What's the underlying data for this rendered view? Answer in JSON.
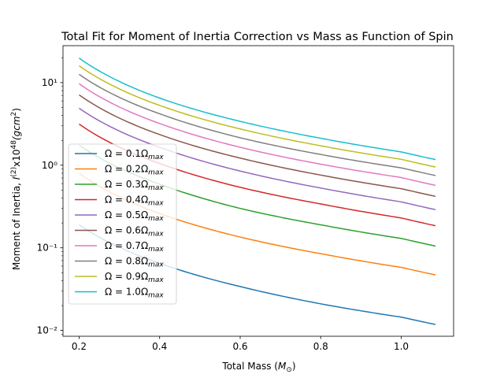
{
  "chart_data": {
    "type": "line",
    "title": "Total Fit for Moment of Inertia Correction vs Mass as Function of Spin",
    "xlabel": "Total Mass (M⊙)",
    "ylabel": "Moment of Inertia, I(2)x10^48(gcm²)",
    "xlim": [
      0.16,
      1.13
    ],
    "ylim": [
      0.0085,
      28
    ],
    "yscale": "log",
    "xticks": [
      0.2,
      0.4,
      0.6,
      0.8,
      1.0
    ],
    "xtick_labels": [
      "0.2",
      "0.4",
      "0.6",
      "0.8",
      "1.0"
    ],
    "yticks": [
      0.01,
      0.1,
      1,
      10
    ],
    "ytick_labels": [
      "10⁻²",
      "10⁻¹",
      "10⁰",
      "10¹"
    ],
    "legend_position": "lower-left",
    "grid": false,
    "x": [
      0.2,
      0.4,
      0.6,
      0.8,
      1.0,
      1.085
    ],
    "series": [
      {
        "name": "Ω = 0.1Ωmax",
        "color": "#1f77b4",
        "values": [
          0.19,
          0.065,
          0.034,
          0.021,
          0.0145,
          0.0118
        ]
      },
      {
        "name": "Ω = 0.2Ωmax",
        "color": "#ff7f0e",
        "values": [
          0.8,
          0.26,
          0.135,
          0.085,
          0.058,
          0.047
        ]
      },
      {
        "name": "Ω = 0.3Ωmax",
        "color": "#2ca02c",
        "values": [
          1.75,
          0.59,
          0.3,
          0.19,
          0.13,
          0.105
        ]
      },
      {
        "name": "Ω = 0.4Ωmax",
        "color": "#d62728",
        "values": [
          3.15,
          1.05,
          0.54,
          0.34,
          0.23,
          0.185
        ]
      },
      {
        "name": "Ω = 0.5Ωmax",
        "color": "#9467bd",
        "values": [
          4.9,
          1.65,
          0.85,
          0.53,
          0.36,
          0.29
        ]
      },
      {
        "name": "Ω = 0.6Ωmax",
        "color": "#8c564b",
        "values": [
          7.1,
          2.35,
          1.22,
          0.76,
          0.52,
          0.42
        ]
      },
      {
        "name": "Ω = 0.7Ωmax",
        "color": "#e377c2",
        "values": [
          9.7,
          3.2,
          1.65,
          1.03,
          0.71,
          0.57
        ]
      },
      {
        "name": "Ω = 0.8Ωmax",
        "color": "#7f7f7f",
        "values": [
          12.6,
          4.2,
          2.15,
          1.35,
          0.93,
          0.75
        ]
      },
      {
        "name": "Ω = 0.9Ωmax",
        "color": "#bcbd22",
        "values": [
          16.0,
          5.3,
          2.75,
          1.72,
          1.18,
          0.95
        ]
      },
      {
        "name": "Ω = 1.0Ωmax",
        "color": "#17becf",
        "values": [
          19.8,
          6.5,
          3.4,
          2.12,
          1.45,
          1.17
        ]
      }
    ]
  }
}
